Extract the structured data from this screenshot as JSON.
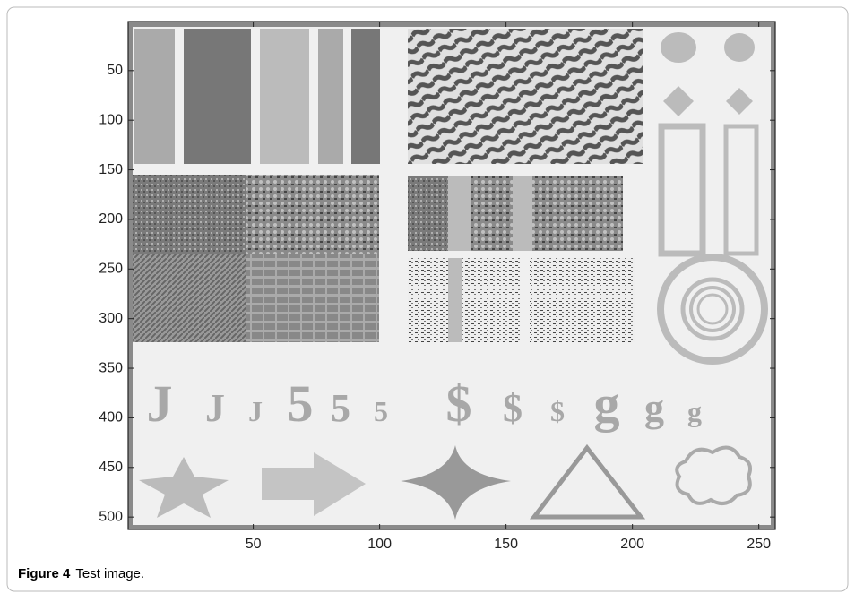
{
  "chart_data": {
    "type": "image",
    "xlim": [
      0.5,
      256.5
    ],
    "ylim": [
      0.5,
      512.5
    ],
    "xticks": [
      50,
      100,
      150,
      200,
      250
    ],
    "yticks": [
      50,
      100,
      150,
      200,
      250,
      300,
      350,
      400,
      450,
      500
    ],
    "glyphs": [
      "J",
      "J",
      "J",
      "5",
      "5",
      "5",
      "$",
      "$",
      "$",
      "g",
      "g",
      "g"
    ]
  },
  "caption": {
    "label": "Figure 4",
    "text": "Test image."
  }
}
